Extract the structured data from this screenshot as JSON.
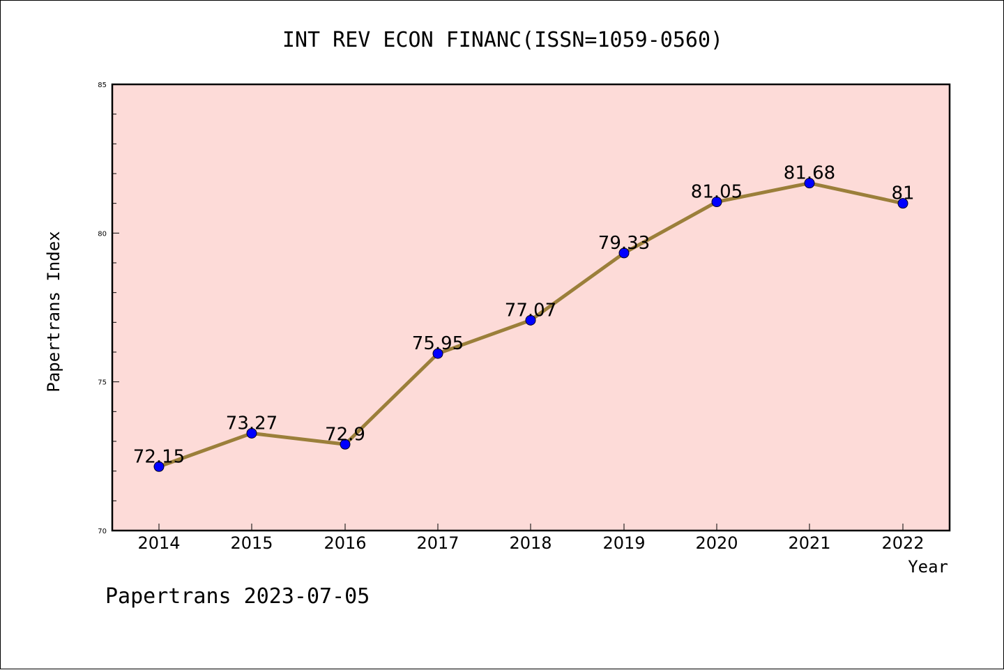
{
  "chart_data": {
    "type": "line",
    "title": "INT REV ECON FINANC(ISSN=1059-0560)",
    "xlabel": "Year",
    "ylabel": "Papertrans Index",
    "categories": [
      "2014",
      "2015",
      "2016",
      "2017",
      "2018",
      "2019",
      "2020",
      "2021",
      "2022"
    ],
    "series": [
      {
        "values": [
          72.15,
          73.27,
          72.9,
          75.95,
          77.07,
          79.33,
          81.05,
          81.68,
          81
        ],
        "labels": [
          "72.15",
          "73.27",
          "72.9",
          "75.95",
          "77.07",
          "79.33",
          "81.05",
          "81.68",
          "81"
        ],
        "color": "#9b7f3a",
        "marker_color": "#0000ff"
      }
    ],
    "ylim": [
      70,
      85
    ],
    "yticks": [
      "70",
      "75",
      "80",
      "85"
    ],
    "plot_background": "#fddbd8",
    "grid": false,
    "footer": "Papertrans 2023-07-05"
  }
}
